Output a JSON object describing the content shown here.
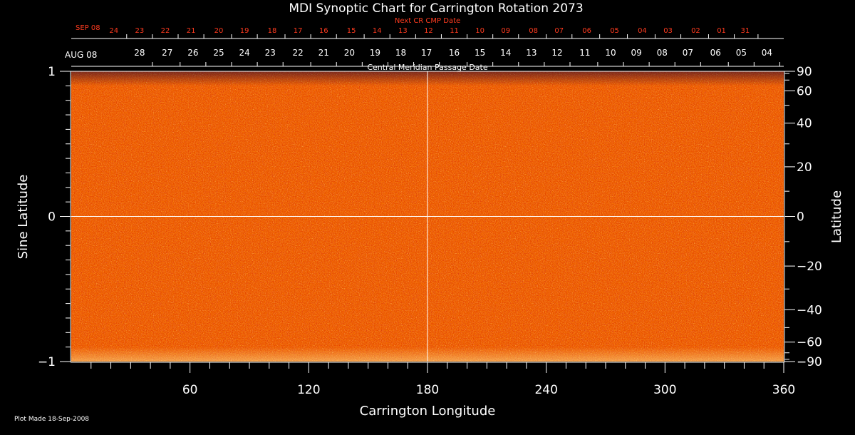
{
  "chart_data": {
    "type": "heatmap",
    "title": "MDI Synoptic Chart for Carrington Rotation 2073",
    "xlabel": "Carrington Longitude",
    "ylabel_left": "Sine Latitude",
    "ylabel_right": "Latitude",
    "xlim": [
      0,
      360
    ],
    "ylim_sine": [
      -1,
      1
    ],
    "x_ticks": [
      60,
      120,
      180,
      240,
      300,
      360
    ],
    "x_minor_step": 10,
    "y_ticks_sine": [
      {
        "value": 1,
        "label": "1"
      },
      {
        "value": 0,
        "label": "0"
      },
      {
        "value": -1,
        "label": "−1"
      }
    ],
    "y_minor_step_sine": 0.1,
    "lat_ticks": [
      {
        "deg": 90,
        "label": "90"
      },
      {
        "deg": 60,
        "label": "60"
      },
      {
        "deg": 40,
        "label": "40"
      },
      {
        "deg": 20,
        "label": "20"
      },
      {
        "deg": 0,
        "label": "0"
      },
      {
        "deg": -20,
        "label": "−20"
      },
      {
        "deg": -40,
        "label": "−40"
      },
      {
        "deg": -60,
        "label": "−60"
      },
      {
        "deg": -90,
        "label": "−90"
      }
    ],
    "lat_minor_step_deg": 10,
    "grid_lines": {
      "longitude": 180,
      "sine_latitude": 0
    },
    "top_axis_label": "Central Meridian Passage Date",
    "date_axis": {
      "start_label": "AUG 08",
      "labels": [
        {
          "lon": 2,
          "label": "04"
        },
        {
          "lon": 15,
          "label": "05"
        },
        {
          "lon": 28,
          "label": "06"
        },
        {
          "lon": 42,
          "label": "07"
        },
        {
          "lon": 55,
          "label": "08"
        },
        {
          "lon": 68,
          "label": "09"
        },
        {
          "lon": 81,
          "label": "10"
        },
        {
          "lon": 94,
          "label": "11"
        },
        {
          "lon": 108,
          "label": "12"
        },
        {
          "lon": 121,
          "label": "13"
        },
        {
          "lon": 134,
          "label": "14"
        },
        {
          "lon": 147,
          "label": "15"
        },
        {
          "lon": 160,
          "label": "16"
        },
        {
          "lon": 174,
          "label": "17"
        },
        {
          "lon": 187,
          "label": "18"
        },
        {
          "lon": 200,
          "label": "19"
        },
        {
          "lon": 213,
          "label": "20"
        },
        {
          "lon": 226,
          "label": "21"
        },
        {
          "lon": 239,
          "label": "22"
        },
        {
          "lon": 253,
          "label": "23"
        },
        {
          "lon": 266,
          "label": "24"
        },
        {
          "lon": 279,
          "label": "25"
        },
        {
          "lon": 292,
          "label": "26"
        },
        {
          "lon": 305,
          "label": "27"
        },
        {
          "lon": 319,
          "label": "28"
        }
      ]
    },
    "next_cr_axis": {
      "title": "Next CR CMP Date",
      "start_label": "SEP 08",
      "color": "#ff3b1f",
      "labels": [
        {
          "lon": 13,
          "label": "31"
        },
        {
          "lon": 25,
          "label": "01"
        },
        {
          "lon": 38,
          "label": "02"
        },
        {
          "lon": 52,
          "label": "03"
        },
        {
          "lon": 65,
          "label": "04"
        },
        {
          "lon": 79,
          "label": "05"
        },
        {
          "lon": 93,
          "label": "06"
        },
        {
          "lon": 107,
          "label": "07"
        },
        {
          "lon": 120,
          "label": "08"
        },
        {
          "lon": 134,
          "label": "09"
        },
        {
          "lon": 147,
          "label": "10"
        },
        {
          "lon": 160,
          "label": "11"
        },
        {
          "lon": 173,
          "label": "12"
        },
        {
          "lon": 186,
          "label": "13"
        },
        {
          "lon": 199,
          "label": "14"
        },
        {
          "lon": 212,
          "label": "15"
        },
        {
          "lon": 226,
          "label": "16"
        },
        {
          "lon": 239,
          "label": "17"
        },
        {
          "lon": 252,
          "label": "18"
        },
        {
          "lon": 266,
          "label": "19"
        },
        {
          "lon": 279,
          "label": "20"
        },
        {
          "lon": 293,
          "label": "21"
        },
        {
          "lon": 306,
          "label": "22"
        },
        {
          "lon": 319,
          "label": "23"
        },
        {
          "lon": 332,
          "label": "24"
        }
      ]
    },
    "colormap": [
      "#200040",
      "#5a0a3a",
      "#8c1a10",
      "#d02800",
      "#ff4a00",
      "#ff7a10",
      "#ffb040",
      "#ffe890"
    ]
  },
  "footer": {
    "plot_made": "Plot Made 18-Sep-2008"
  }
}
